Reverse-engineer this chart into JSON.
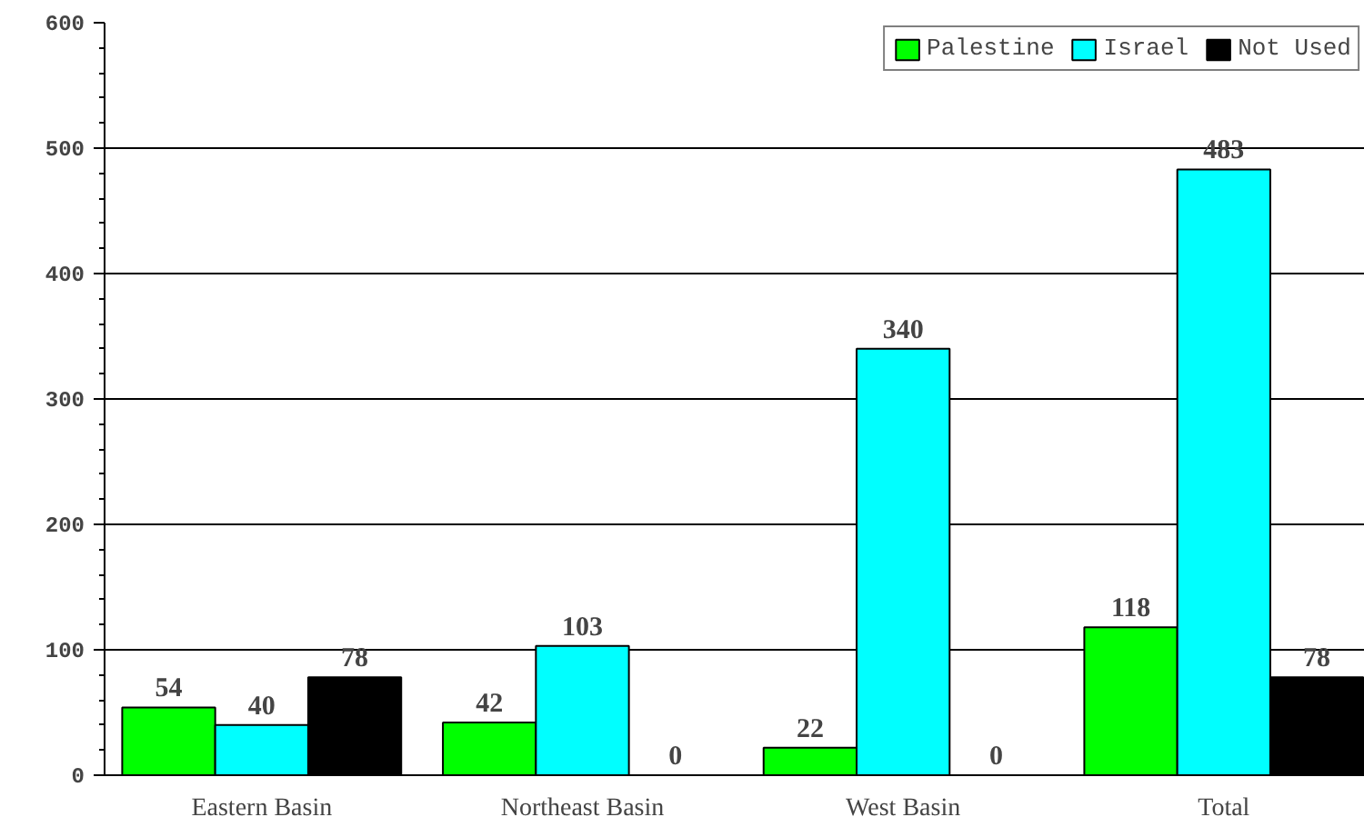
{
  "chart_data": {
    "type": "bar",
    "categories": [
      "Eastern Basin",
      "Northeast Basin",
      "West Basin",
      "Total"
    ],
    "series": [
      {
        "name": "Palestine",
        "color": "#00ff00",
        "values": [
          54,
          42,
          22,
          118
        ]
      },
      {
        "name": "Israel",
        "color": "#00ffff",
        "values": [
          40,
          103,
          340,
          483
        ]
      },
      {
        "name": "Not Used",
        "color": "#000000",
        "values": [
          78,
          0,
          0,
          78
        ]
      }
    ],
    "ylim": [
      0,
      600
    ],
    "yticks": [
      0,
      100,
      200,
      300,
      400,
      500,
      600
    ],
    "grid": "y",
    "legend": "top right",
    "data_labels": true
  }
}
